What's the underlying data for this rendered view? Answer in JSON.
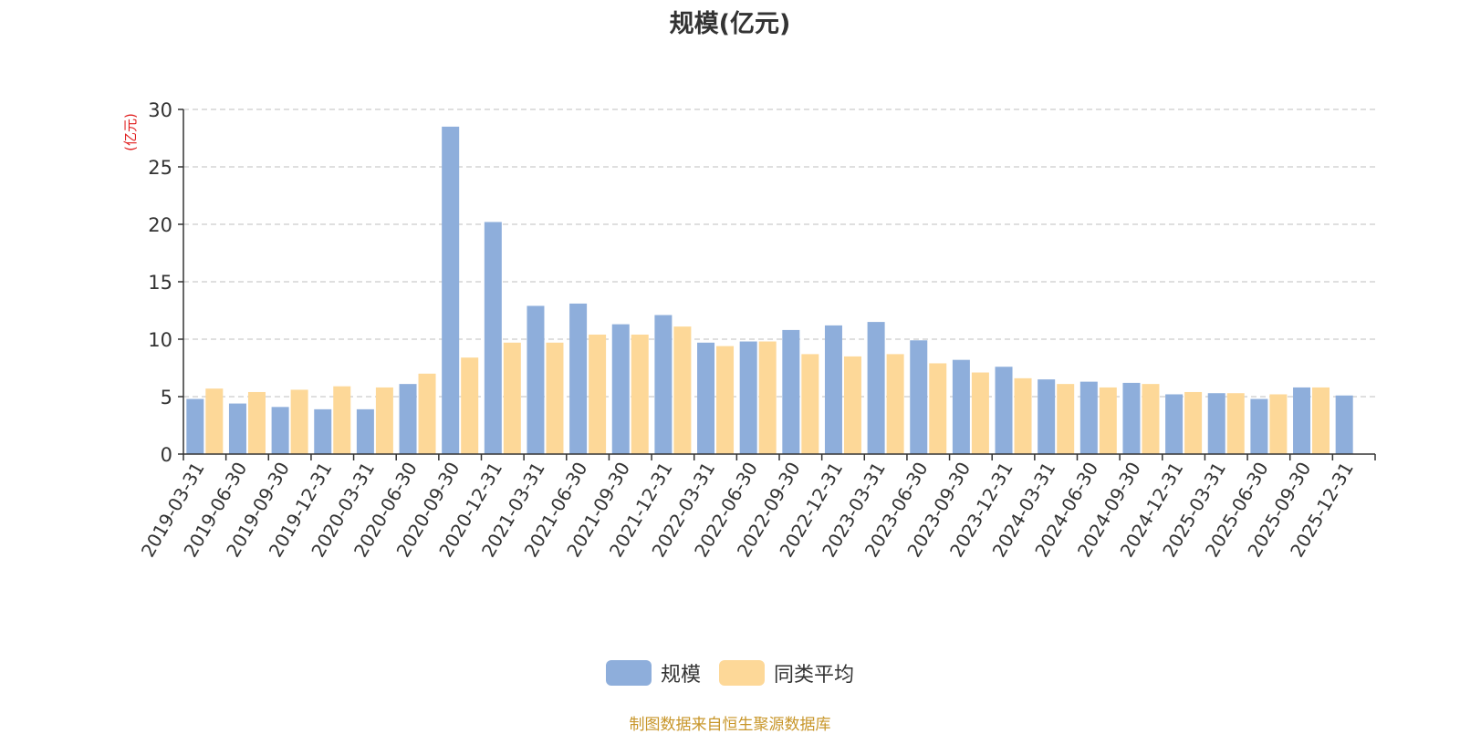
{
  "chart_data": {
    "type": "bar",
    "title": "规模(亿元)",
    "ylabel": "(亿元)",
    "ylim": [
      0,
      30
    ],
    "yticks": [
      0,
      5,
      10,
      15,
      20,
      25,
      30
    ],
    "grid": true,
    "legend_position": "bottom",
    "categories": [
      "2019-03-31",
      "2019-06-30",
      "2019-09-30",
      "2019-12-31",
      "2020-03-31",
      "2020-06-30",
      "2020-09-30",
      "2020-12-31",
      "2021-03-31",
      "2021-06-30",
      "2021-09-30",
      "2021-12-31",
      "2022-03-31",
      "2022-06-30",
      "2022-09-30",
      "2022-12-31",
      "2023-03-31",
      "2023-06-30",
      "2023-09-30",
      "2023-12-31",
      "2024-03-31",
      "2024-06-30",
      "2024-09-30",
      "2024-12-31",
      "2025-03-31",
      "2025-06-30",
      "2025-09-30",
      "2025-12-31"
    ],
    "series": [
      {
        "name": "规模",
        "color": "#8eaedb",
        "values": [
          4.8,
          4.4,
          4.1,
          3.9,
          3.9,
          6.1,
          28.5,
          20.2,
          12.9,
          13.1,
          11.3,
          12.1,
          9.7,
          9.8,
          10.8,
          11.2,
          11.5,
          9.9,
          8.2,
          7.6,
          6.5,
          6.3,
          6.2,
          5.2,
          5.3,
          4.8,
          5.8,
          5.1
        ]
      },
      {
        "name": "同类平均",
        "color": "#fdd898",
        "values": [
          5.7,
          5.4,
          5.6,
          5.9,
          5.8,
          7.0,
          8.4,
          9.7,
          9.7,
          10.4,
          10.4,
          11.1,
          9.4,
          9.8,
          8.7,
          8.5,
          8.7,
          7.9,
          7.1,
          6.6,
          6.1,
          5.8,
          6.1,
          5.4,
          5.3,
          5.2,
          5.8,
          null
        ]
      }
    ]
  },
  "footer": {
    "source_note": "制图数据来自恒生聚源数据库"
  }
}
